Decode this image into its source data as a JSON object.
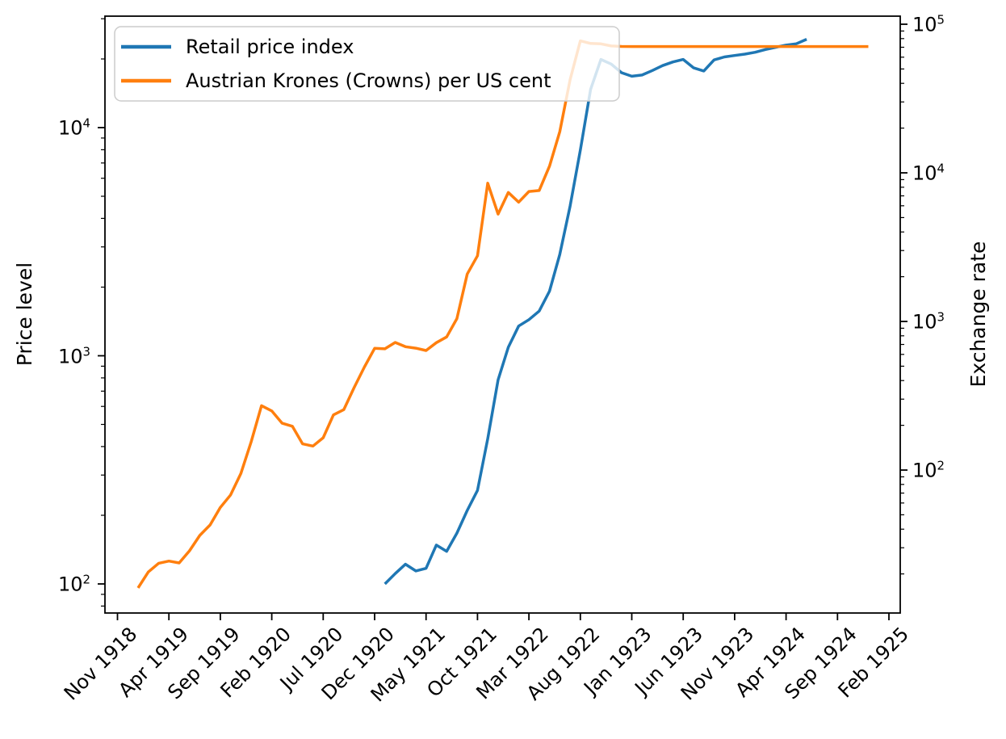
{
  "figure": {
    "background_color": "#ffffff",
    "frame_color": "#000000"
  },
  "chart_data": {
    "type": "line",
    "title": "",
    "xlabel": "",
    "ylabel_left": "Price level",
    "ylabel_right": "Exchange rate",
    "x_tick_labels": [
      "Nov 1918",
      "Apr 1919",
      "Sep 1919",
      "Feb 1920",
      "Jul 1920",
      "Dec 1920",
      "May 1921",
      "Oct 1921",
      "Mar 1922",
      "Aug 1922",
      "Jan 1923",
      "Jun 1923",
      "Nov 1923",
      "Apr 1924",
      "Sep 1924",
      "Feb 1925"
    ],
    "months_between_ticks": 5,
    "y_left": {
      "scale": "log",
      "tick_labels": [
        "10^2",
        "10^3",
        "10^4"
      ],
      "approx_range": [
        75,
        31000
      ],
      "grid": false
    },
    "y_right": {
      "scale": "log",
      "tick_labels": [
        "10^2",
        "10^3",
        "10^4",
        "10^5"
      ],
      "approx_range": [
        10.6,
        116000
      ],
      "grid": false
    },
    "legend": {
      "location": "upper left",
      "entries": [
        "Retail price index",
        "Austrian Krones (Crowns) per US cent"
      ],
      "entry_colors": [
        "#1f77b4",
        "#ff7f0e"
      ]
    },
    "series": [
      {
        "name": "Retail price index",
        "axis": "left",
        "color": "#1f77b4",
        "first_month": "Jan 1921",
        "months_after_first_tick": 26,
        "values": [
          100,
          111,
          122,
          114,
          117,
          148,
          139,
          167,
          210,
          257,
          433,
          784,
          1090,
          1350,
          1440,
          1570,
          1920,
          2780,
          4530,
          7970,
          14700,
          19900,
          19000,
          17400,
          16800,
          17000,
          17800,
          18700,
          19400,
          19900,
          18300,
          17700,
          19800,
          20400,
          20700,
          21000,
          21400,
          22000,
          22500,
          23000,
          23300,
          24400
        ]
      },
      {
        "name": "Austrian Krones (Crowns) per US cent",
        "axis": "right",
        "color": "#ff7f0e",
        "first_month": "Jan 1919",
        "months_after_first_tick": 2,
        "values": [
          16.1,
          20.6,
          23.6,
          24.4,
          23.7,
          28.6,
          36.3,
          42.7,
          56,
          68,
          95,
          155,
          271,
          250,
          207,
          197,
          150,
          145,
          165,
          235,
          255,
          358,
          493,
          659,
          654,
          722,
          676,
          661,
          637,
          720,
          786,
          1045,
          2085,
          2767,
          8520,
          5275,
          7375,
          6350,
          7488,
          7600,
          11100,
          18900,
          42350,
          77300,
          74210,
          73750,
          71400,
          70925,
          70800,
          70800,
          70800,
          70800,
          70800,
          70800,
          70800,
          70800,
          70800,
          70800,
          70800,
          70800,
          70800,
          70800,
          70800,
          70800,
          70800,
          70800,
          70800,
          70800,
          70800,
          70800,
          70800,
          70800
        ]
      }
    ]
  }
}
